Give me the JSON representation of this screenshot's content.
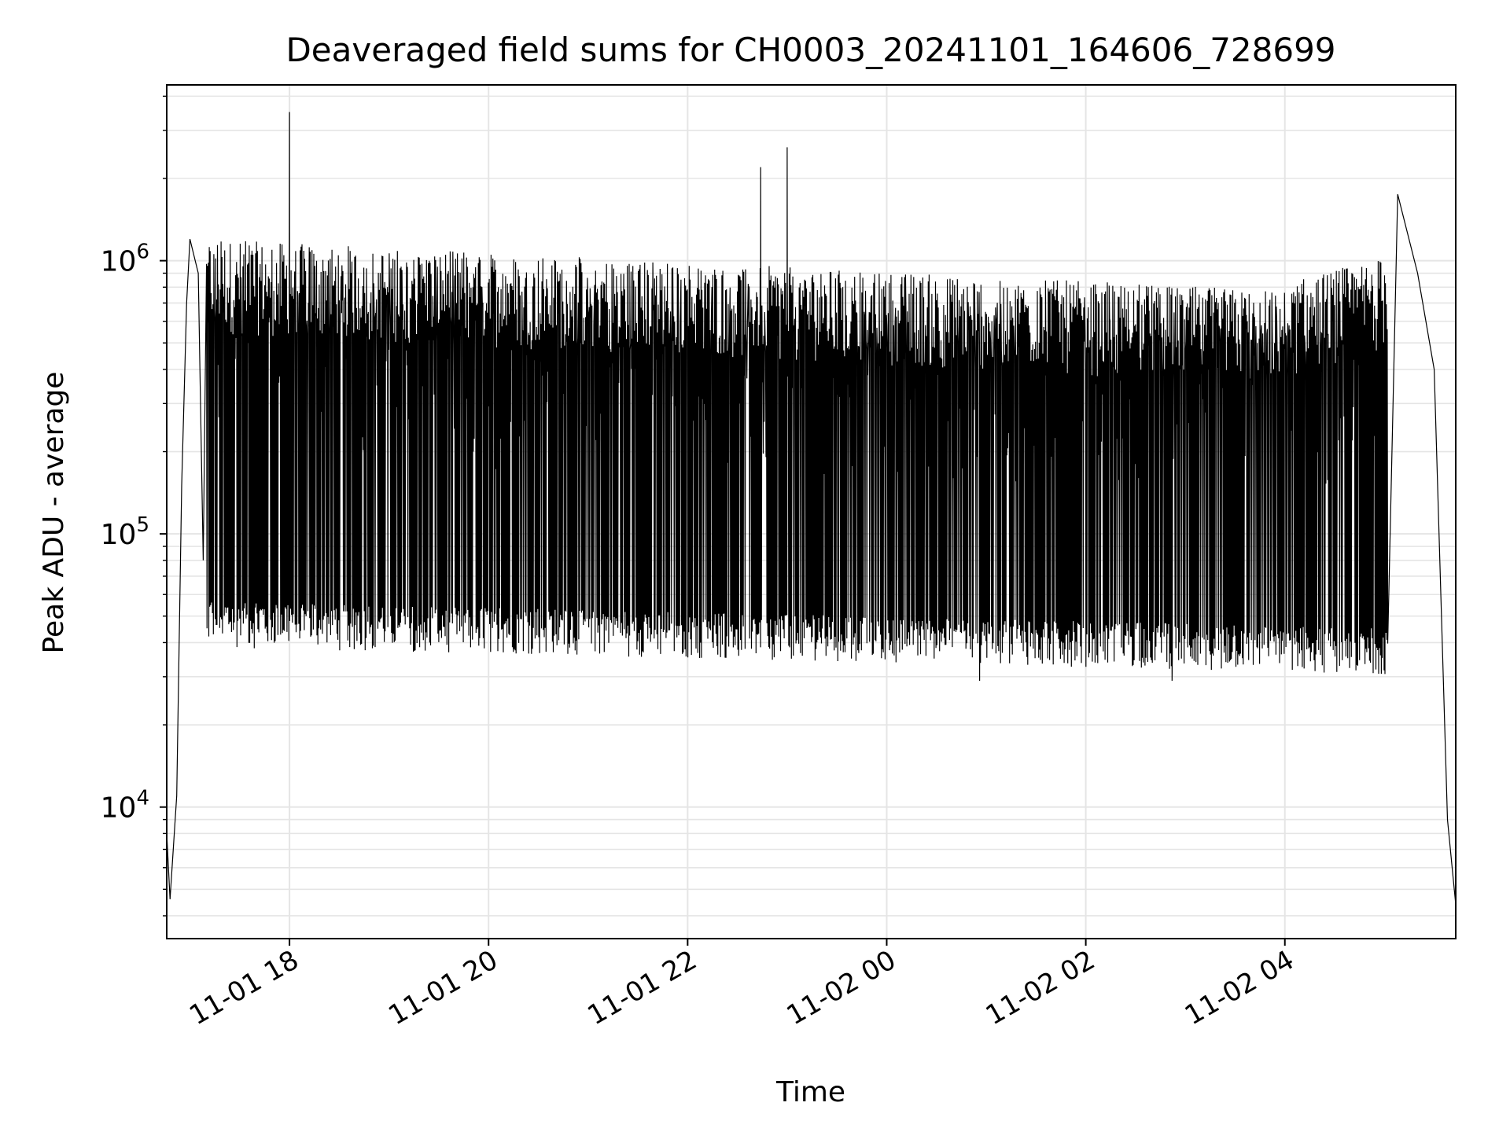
{
  "chart_data": {
    "type": "line",
    "title": "Deaveraged field sums for CH0003_20241101_164606_728699",
    "xlabel": "Time",
    "ylabel": "Peak ADU - average",
    "yscale": "log",
    "ylim": [
      3300,
      4400000
    ],
    "xlim": [
      "2024-11-01 16:46",
      "2024-11-02 05:43"
    ],
    "x_tick_labels": [
      "11-01 18",
      "11-01 20",
      "11-01 22",
      "11-02 00",
      "11-02 02",
      "11-02 04"
    ],
    "x_ticks": [
      "2024-11-01 18:00",
      "2024-11-01 20:00",
      "2024-11-01 22:00",
      "2024-11-02 00:00",
      "2024-11-02 02:00",
      "2024-11-02 04:00"
    ],
    "y_ticks": [
      {
        "base": "10",
        "exp": "4",
        "value": 10000
      },
      {
        "base": "10",
        "exp": "5",
        "value": 100000
      },
      {
        "base": "10",
        "exp": "6",
        "value": 1000000
      }
    ],
    "grid": true,
    "series": [
      {
        "color": "#000000",
        "description_points": [
          {
            "x": "2024-11-01 16:46",
            "y": 8000
          },
          {
            "x": "2024-11-01 16:48",
            "y": 4600
          },
          {
            "x": "2024-11-01 16:52",
            "y": 11000
          },
          {
            "x": "2024-11-01 16:55",
            "y": 150000
          },
          {
            "x": "2024-11-01 16:58",
            "y": 700000
          },
          {
            "x": "2024-11-01 17:00",
            "y": 1200000
          },
          {
            "x": "2024-11-01 17:05",
            "y": 900000
          },
          {
            "x": "2024-11-01 17:08",
            "y": 80000
          },
          {
            "x": "2024-11-01 17:15",
            "y": 400000
          },
          {
            "x": "2024-11-01 17:30",
            "y": 60000
          },
          {
            "x": "2024-11-01 18:00",
            "y": 3500000
          },
          {
            "x": "2024-11-01 22:44",
            "y": 2200000
          },
          {
            "x": "2024-11-01 23:00",
            "y": 2600000
          },
          {
            "x": "2024-11-02 00:56",
            "y": 29000
          },
          {
            "x": "2024-11-02 02:52",
            "y": 29000
          },
          {
            "x": "2024-11-02 05:08",
            "y": 1750000
          },
          {
            "x": "2024-11-02 05:20",
            "y": 900000
          },
          {
            "x": "2024-11-02 05:30",
            "y": 400000
          },
          {
            "x": "2024-11-02 05:38",
            "y": 9000
          },
          {
            "x": "2024-11-02 05:43",
            "y": 4400
          }
        ]
      }
    ]
  }
}
